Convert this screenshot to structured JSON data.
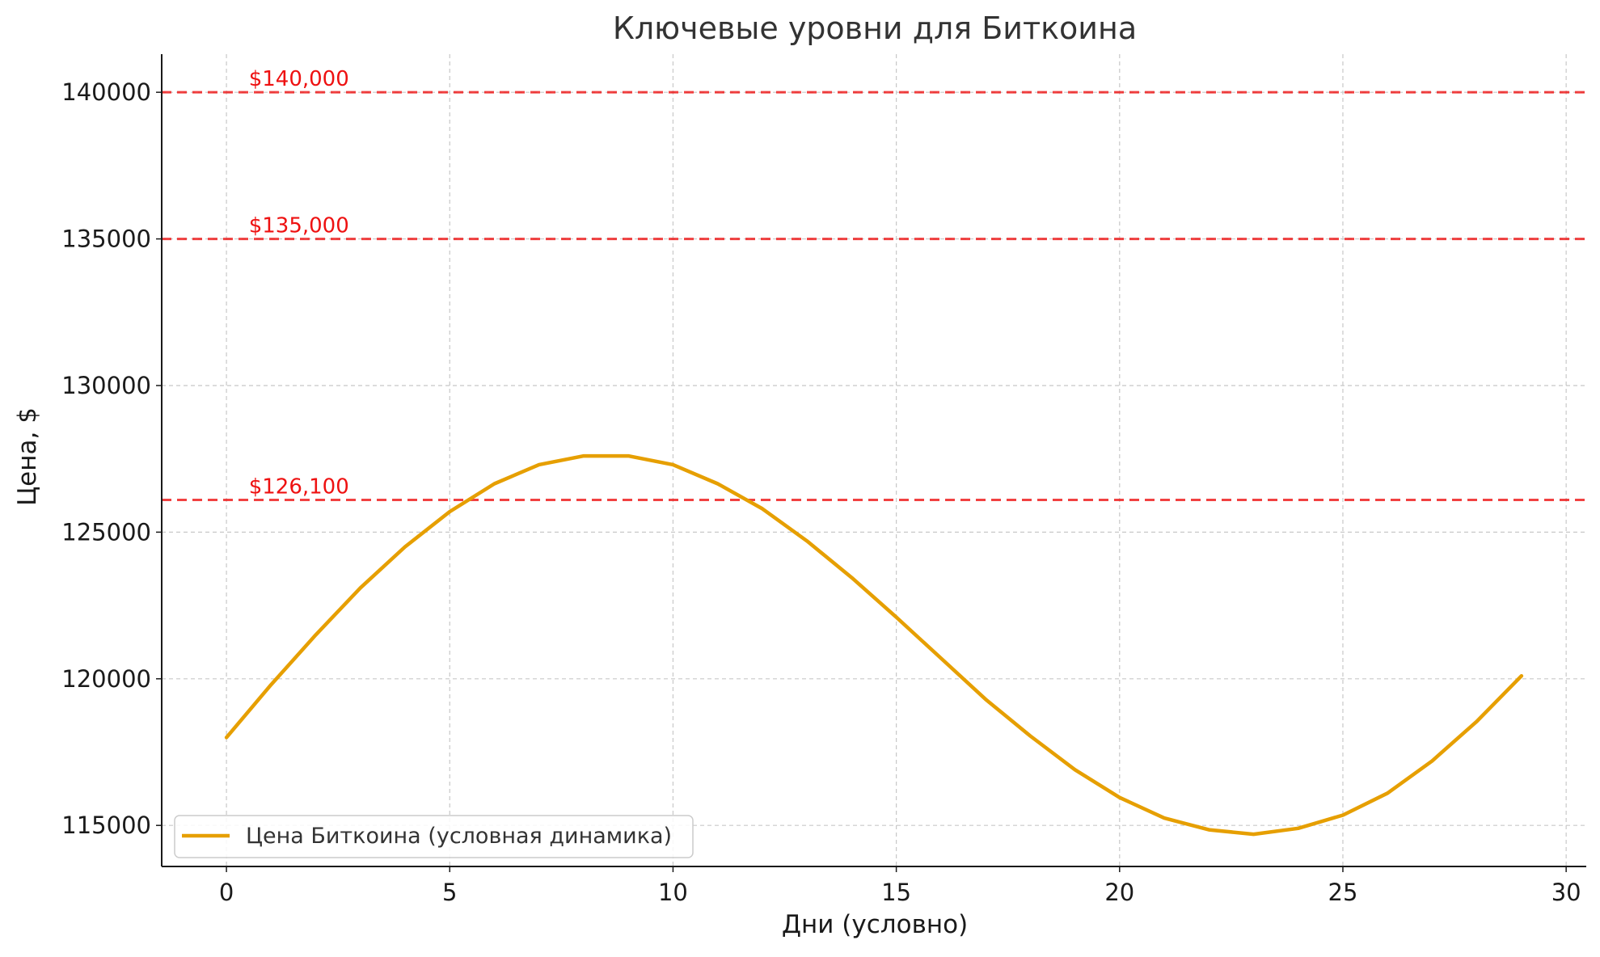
{
  "chart_data": {
    "type": "line",
    "title": "Ключевые уровни для Биткоина",
    "xlabel": "Дни (условно)",
    "ylabel": "Цена, $",
    "xlim": [
      -1.45,
      30.45
    ],
    "ylim": [
      113600,
      141300
    ],
    "x_ticks": [
      0,
      5,
      10,
      15,
      20,
      25,
      30
    ],
    "y_ticks": [
      115000,
      120000,
      125000,
      130000,
      135000,
      140000
    ],
    "grid": true,
    "legend_position": "lower-left",
    "series": [
      {
        "name": "Цена Биткоина (условная динамика)",
        "color": "#E69F00",
        "x": [
          0,
          1,
          2,
          3,
          4,
          5,
          6,
          7,
          8,
          9,
          10,
          11,
          12,
          13,
          14,
          15,
          16,
          17,
          18,
          19,
          20,
          21,
          22,
          23,
          24,
          25,
          26,
          27,
          28,
          29
        ],
        "y": [
          118000,
          119800,
          121500,
          123100,
          124500,
          125700,
          126650,
          127300,
          127600,
          127600,
          127300,
          126650,
          125800,
          124700,
          123450,
          122100,
          120700,
          119300,
          118050,
          116900,
          115950,
          115250,
          114850,
          114700,
          114900,
          115350,
          116100,
          117200,
          118550,
          120100
        ]
      }
    ],
    "reference_lines": [
      {
        "value": 140000,
        "label": "$140,000",
        "color": "#ee1111"
      },
      {
        "value": 135000,
        "label": "$135,000",
        "color": "#ee1111"
      },
      {
        "value": 126100,
        "label": "$126,100",
        "color": "#ee1111"
      }
    ]
  }
}
